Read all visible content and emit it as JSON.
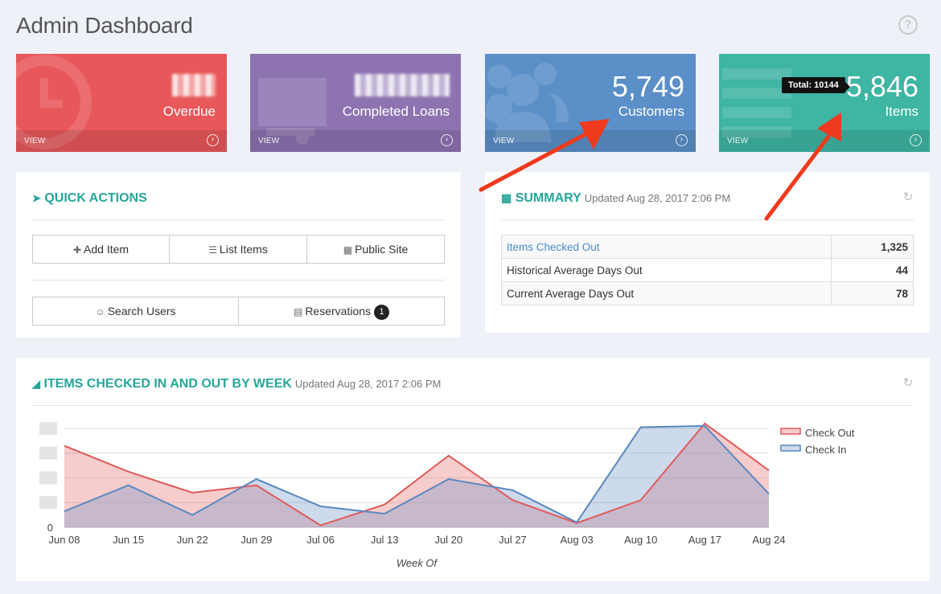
{
  "page": {
    "title": "Admin Dashboard"
  },
  "cards": {
    "overdue": {
      "label": "Overdue",
      "view": "VIEW",
      "color": "#e8575a"
    },
    "loans": {
      "label": "Completed Loans",
      "view": "VIEW",
      "color": "#8d73b0"
    },
    "customers": {
      "value": "5,749",
      "label": "Customers",
      "view": "VIEW",
      "color": "#5b8fc8"
    },
    "items": {
      "value": "5,846",
      "label": "Items",
      "view": "VIEW",
      "tooltip": "Total: 10144",
      "color": "#3fb5a4"
    }
  },
  "quick_actions": {
    "title": "QUICK ACTIONS",
    "add_item": "Add Item",
    "list_items": "List Items",
    "public_site": "Public Site",
    "search_users": "Search Users",
    "reservations": "Reservations",
    "reservations_badge": "1"
  },
  "summary": {
    "title": "SUMMARY",
    "updated": "Updated Aug 28, 2017 2:06 PM",
    "rows": [
      {
        "label": "Items Checked Out",
        "value": "1,325"
      },
      {
        "label": "Historical Average Days Out",
        "value": "44"
      },
      {
        "label": "Current Average Days Out",
        "value": "78"
      }
    ]
  },
  "chart_panel": {
    "title": "ITEMS CHECKED IN AND OUT BY WEEK",
    "updated": "Updated Aug 28, 2017 2:06 PM"
  },
  "chart_data": {
    "type": "area",
    "xlabel": "Week Of",
    "ylabel": "",
    "y_tick_zero": "0",
    "categories": [
      "Jun 08",
      "Jun 15",
      "Jun 22",
      "Jun 29",
      "Jul 06",
      "Jul 13",
      "Jul 20",
      "Jul 27",
      "Aug 03",
      "Aug 10",
      "Aug 17",
      "Aug 24"
    ],
    "legend_position": "right",
    "grid": true,
    "series": [
      {
        "name": "Check Out",
        "color": "#e05a5a",
        "fill": "rgba(232,110,110,0.35)",
        "values": [
          3.3,
          2.25,
          1.4,
          1.7,
          0.08,
          0.92,
          2.9,
          1.1,
          0.17,
          1.1,
          4.2,
          2.3
        ]
      },
      {
        "name": "Check In",
        "color": "#5a88c0",
        "fill": "rgba(110,150,200,0.35)",
        "values": [
          0.65,
          1.7,
          0.5,
          1.95,
          0.85,
          0.55,
          1.95,
          1.5,
          0.2,
          4.05,
          4.1,
          1.35
        ]
      }
    ],
    "ylim": [
      0,
      4
    ]
  },
  "colors": {
    "accent": "#26a69a",
    "arrow": "#f03a1d"
  }
}
